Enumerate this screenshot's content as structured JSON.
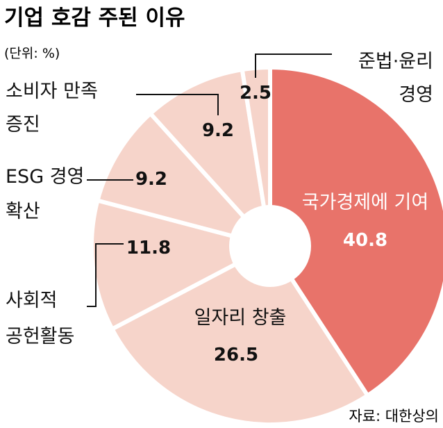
{
  "chart_data": {
    "type": "pie",
    "title": "기업 호감 주된 이유",
    "unit_label": "(단위: %)",
    "source": "자료: 대한상의",
    "slices": [
      {
        "label": [
          "국가경제에 기여"
        ],
        "value": 40.8,
        "display": "40.8",
        "color": "#e8736a"
      },
      {
        "label": [
          "일자리 창출"
        ],
        "value": 26.5,
        "display": "26.5",
        "color": "#f6d4ca"
      },
      {
        "label": [
          "사회적",
          "공헌활동"
        ],
        "value": 11.8,
        "display": "11.8",
        "color": "#f6d4ca"
      },
      {
        "label": [
          "ESG 경영",
          "확산"
        ],
        "value": 9.2,
        "display": "9.2",
        "color": "#f6d4ca"
      },
      {
        "label": [
          "소비자 만족",
          "증진"
        ],
        "value": 9.2,
        "display": "9.2",
        "color": "#f6d4ca"
      },
      {
        "label": [
          "준법·윤리",
          "경영"
        ],
        "value": 2.5,
        "display": "2.5",
        "color": "#f6d4ca"
      }
    ]
  }
}
